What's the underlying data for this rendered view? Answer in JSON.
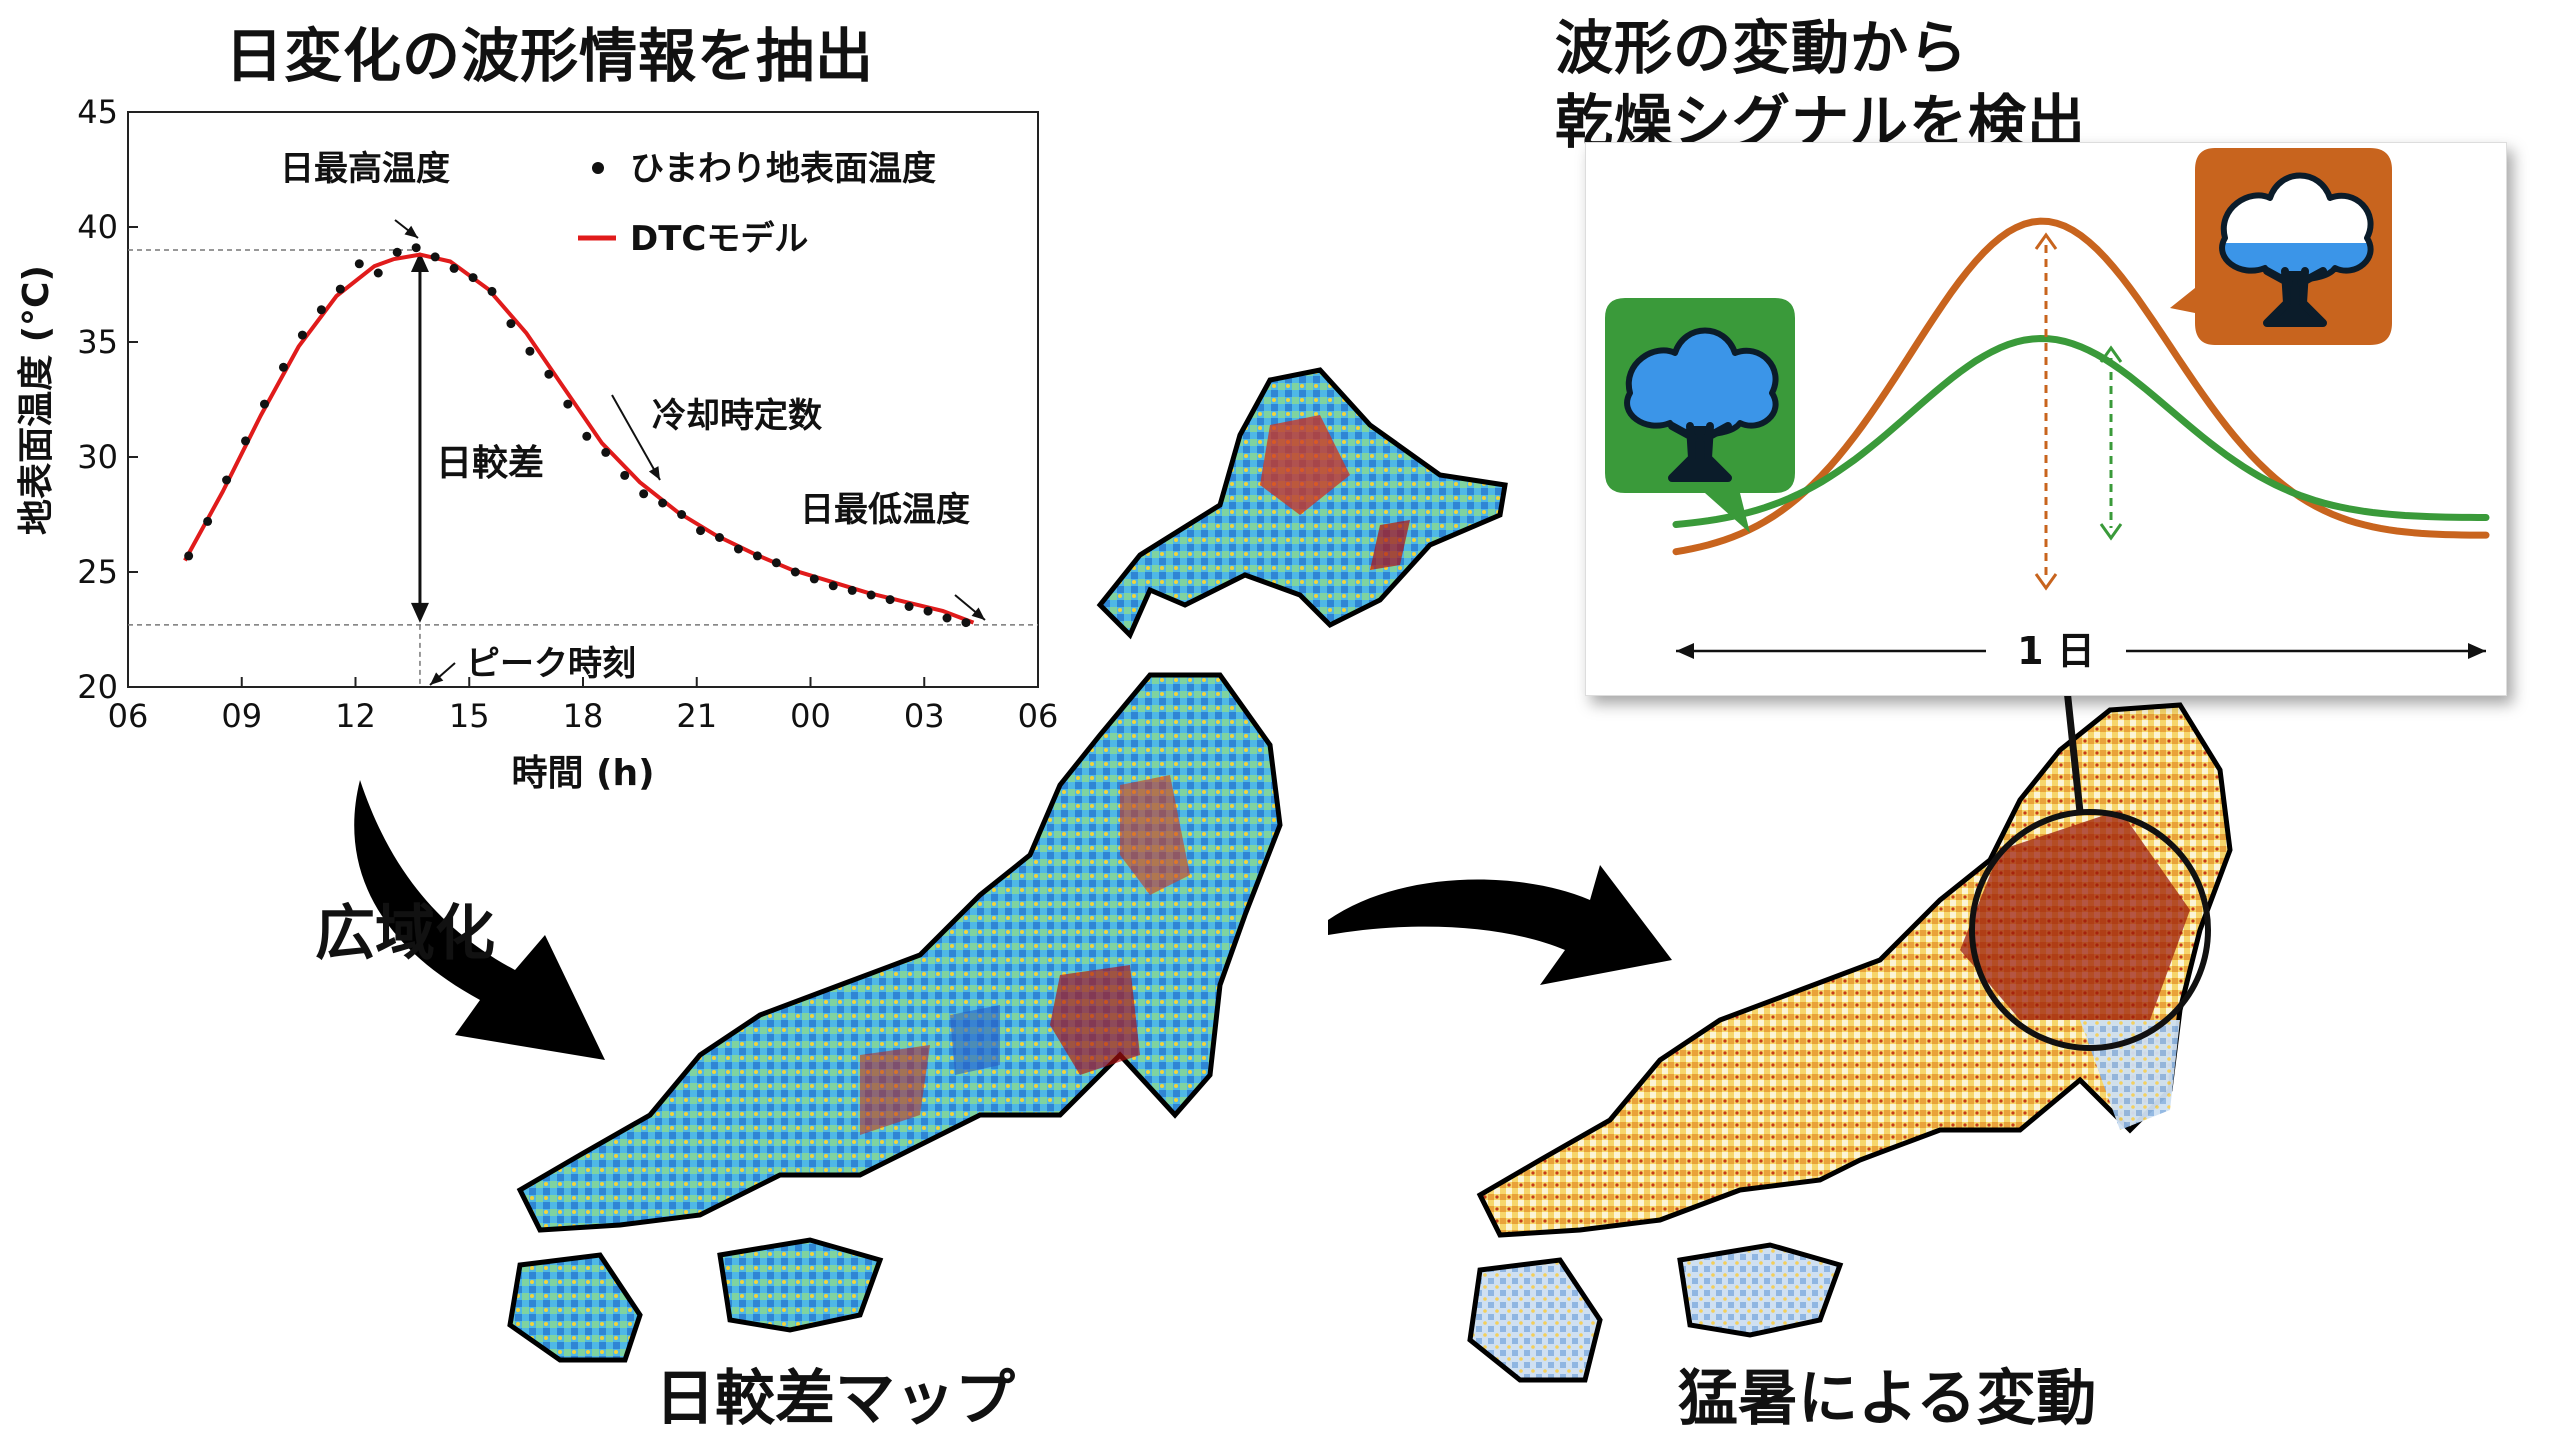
{
  "left_title": "日変化の波形情報を抽出",
  "right_title_line1": "波形の変動から",
  "right_title_line2": "乾燥シグナルを検出",
  "arrow_label_expand": "広域化",
  "map_left_label": "日較差マップ",
  "map_right_label": "猛暑による変動",
  "chart_data": {
    "type": "line",
    "ylabel": "地表面温度 (°C)",
    "xlabel": "時間 (h)",
    "x_tick_labels": [
      "06",
      "09",
      "12",
      "15",
      "18",
      "21",
      "00",
      "03",
      "06"
    ],
    "y_tick_labels": [
      "20",
      "25",
      "30",
      "35",
      "40",
      "45"
    ],
    "ylim": [
      20,
      45
    ],
    "xlim_hours": [
      6,
      30
    ],
    "legend": {
      "placement": "top-right",
      "points": "ひまわり地表面温度",
      "model": "DTCモデル"
    },
    "series": [
      {
        "name": "DTCモデル",
        "color": "#e01b1b",
        "x": [
          7.5,
          8.5,
          9.5,
          10.5,
          11.5,
          12.5,
          13.0,
          13.7,
          14.5,
          15.5,
          16.5,
          17.5,
          18.5,
          19.5,
          20.5,
          21.5,
          22.5,
          23.5,
          24.5,
          25.5,
          26.5,
          27.5,
          28.3
        ],
        "y": [
          25.5,
          28.5,
          31.8,
          34.8,
          37.0,
          38.3,
          38.6,
          38.8,
          38.5,
          37.3,
          35.4,
          33.0,
          30.6,
          28.9,
          27.6,
          26.6,
          25.8,
          25.1,
          24.6,
          24.1,
          23.7,
          23.3,
          22.8
        ]
      },
      {
        "name": "ひまわり地表面温度",
        "color": "#111111",
        "x": [
          7.6,
          8.1,
          8.6,
          9.1,
          9.6,
          10.1,
          10.6,
          11.1,
          11.6,
          12.1,
          12.6,
          13.1,
          13.6,
          14.1,
          14.6,
          15.1,
          15.6,
          16.1,
          16.6,
          17.1,
          17.6,
          18.1,
          18.6,
          19.1,
          19.6,
          20.1,
          20.6,
          21.1,
          21.6,
          22.1,
          22.6,
          23.1,
          23.6,
          24.1,
          24.6,
          25.1,
          25.6,
          26.1,
          26.6,
          27.1,
          27.6,
          28.1
        ],
        "y": [
          25.7,
          27.2,
          29.0,
          30.7,
          32.3,
          33.9,
          35.3,
          36.4,
          37.3,
          38.4,
          38.0,
          38.9,
          39.1,
          38.7,
          38.2,
          37.8,
          37.2,
          35.8,
          34.6,
          33.6,
          32.3,
          30.9,
          30.2,
          29.2,
          28.4,
          28.0,
          27.5,
          26.8,
          26.5,
          26.0,
          25.7,
          25.4,
          25.0,
          24.7,
          24.4,
          24.2,
          24.0,
          23.8,
          23.5,
          23.3,
          23.0,
          22.8
        ]
      }
    ],
    "annotations": {
      "daily_max": "日最高温度",
      "daily_range": "日較差",
      "cooling_constant": "冷却時定数",
      "daily_min": "日最低温度",
      "peak_time": "ピーク時刻"
    },
    "max_guide_value": 39,
    "min_guide_value": 22.7,
    "peak_hour": 13.7
  },
  "diurnal_card": {
    "day_label": "1 日",
    "colors": {
      "dry": "#c8641e",
      "healthy": "#3a9a3a"
    }
  },
  "colors": {
    "map_hot": "#b01010",
    "map_cool": "#1e5fc0",
    "map_mid": "#f2d23a"
  }
}
